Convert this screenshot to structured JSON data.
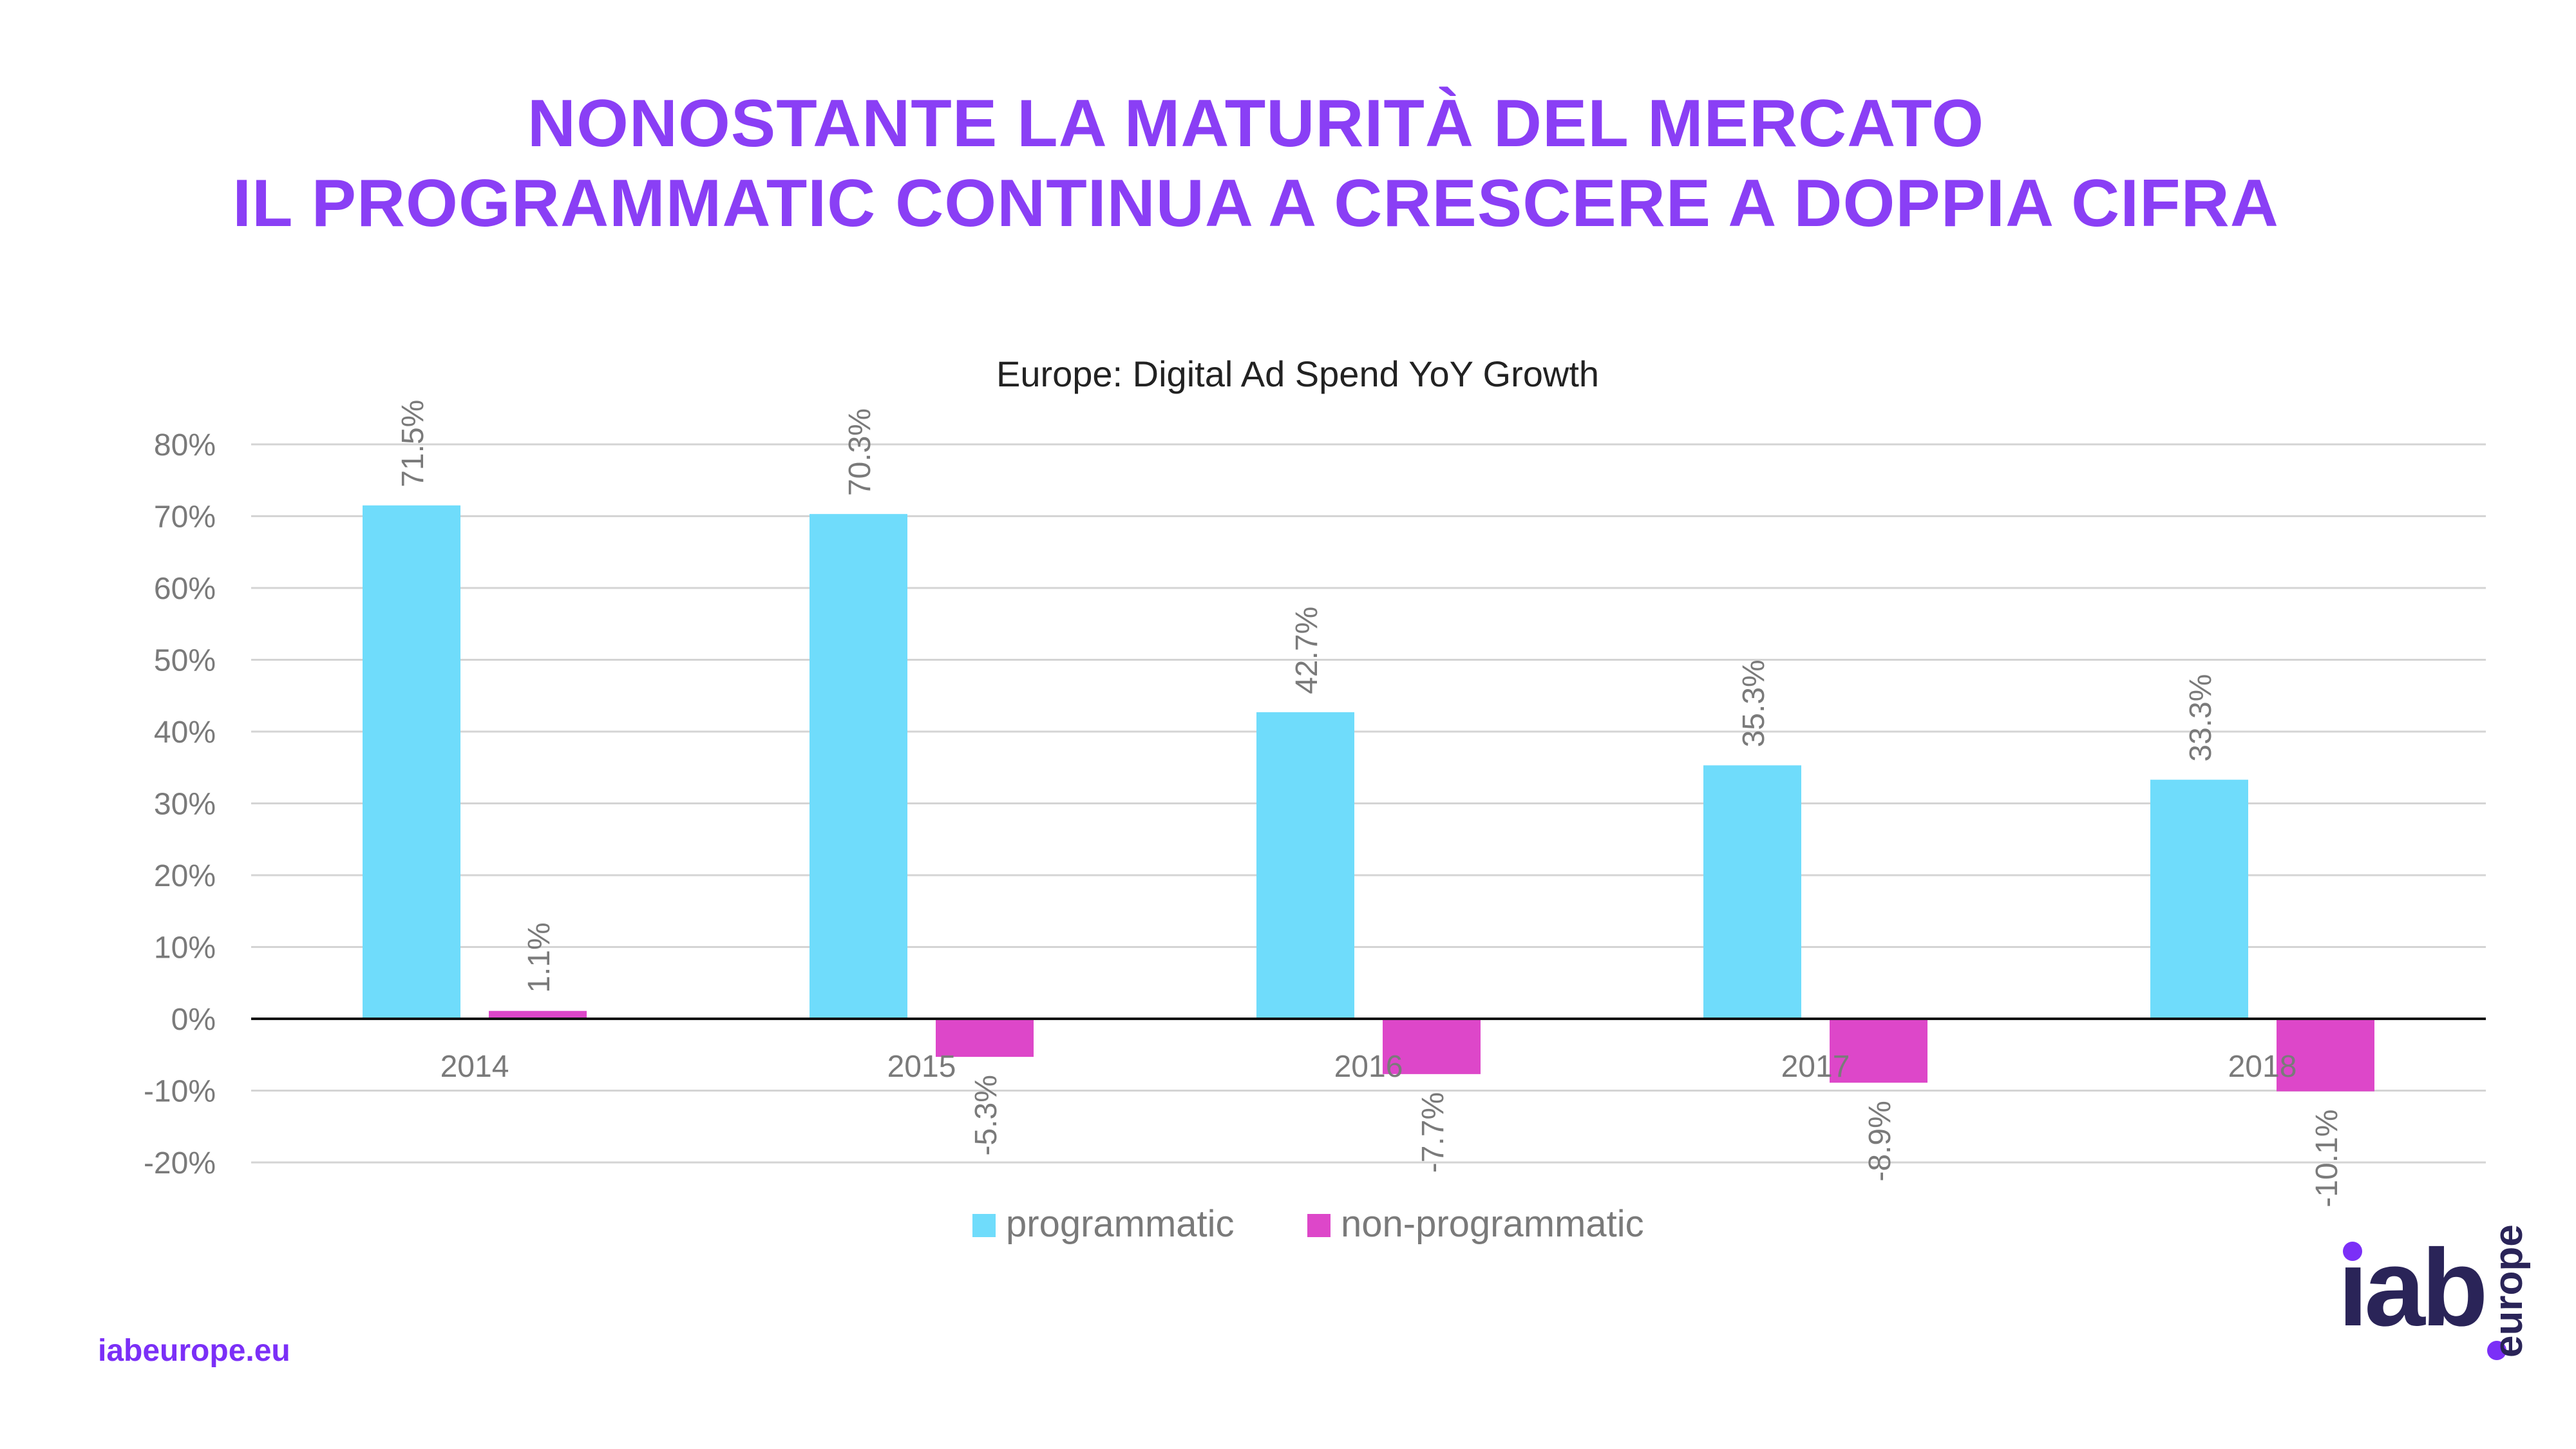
{
  "headline": {
    "line1": "NONOSTANTE LA MATURITÀ DEL MERCATO",
    "line2": "IL PROGRAMMATIC CONTINUA A CRESCERE A DOPPIA CIFRA"
  },
  "footer": {
    "url": "iabeurope.eu",
    "logo_text": "iab",
    "logo_sub": "europe"
  },
  "colors": {
    "headline": "#8a3ff5",
    "programmatic": "#6fdcfb",
    "non_programmatic": "#dd47c9",
    "axis_text": "#7a7a7a",
    "grid": "#d4d4d4"
  },
  "chart_data": {
    "type": "bar",
    "title": "Europe: Digital Ad Spend YoY Growth",
    "categories": [
      "2014",
      "2015",
      "2016",
      "2017",
      "2018"
    ],
    "series": [
      {
        "name": "programmatic",
        "values": [
          71.5,
          70.3,
          42.7,
          35.3,
          33.3
        ],
        "color": "#6fdcfb"
      },
      {
        "name": "non-programmatic",
        "values": [
          1.1,
          -5.3,
          -7.7,
          -8.9,
          -10.1
        ],
        "color": "#dd47c9"
      }
    ],
    "data_labels": [
      [
        "71.5%",
        "70.3%",
        "42.7%",
        "35.3%",
        "33.3%"
      ],
      [
        "1.1%",
        "-5.3%",
        "-7.7%",
        "-8.9%",
        "-10.1%"
      ]
    ],
    "yticks": [
      80,
      70,
      60,
      50,
      40,
      30,
      20,
      10,
      0,
      -10,
      -20
    ],
    "ytick_labels": [
      "80%",
      "70%",
      "60%",
      "50%",
      "40%",
      "30%",
      "20%",
      "10%",
      "0%",
      "-10%",
      "-20%"
    ],
    "ylim": [
      -20,
      80
    ],
    "grid": true,
    "legend_position": "bottom"
  }
}
